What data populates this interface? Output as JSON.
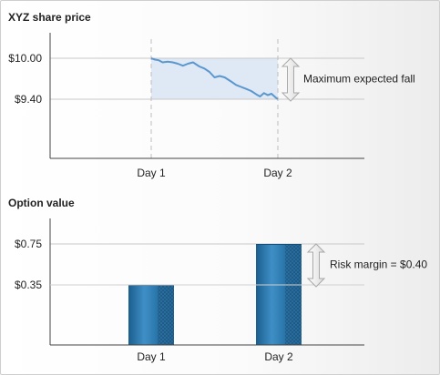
{
  "chart_data": [
    {
      "type": "line",
      "title": "XYZ share price",
      "x_ticks": [
        "Day 1",
        "Day 2"
      ],
      "y_ticks": [
        "$10.00",
        "$9.40"
      ],
      "y_tick_values": [
        10.0,
        9.4
      ],
      "ylim": [
        8.8,
        10.4
      ],
      "xlim": [
        0,
        1
      ],
      "series": [
        {
          "x": [
            0.0,
            0.03,
            0.06,
            0.09,
            0.13,
            0.17,
            0.21,
            0.25,
            0.29,
            0.33,
            0.38,
            0.42,
            0.46,
            0.5,
            0.54,
            0.58,
            0.63,
            0.67,
            0.71,
            0.75,
            0.79,
            0.83,
            0.86,
            0.89,
            0.92,
            0.95,
            0.98,
            1.0
          ],
          "values": [
            10.0,
            9.98,
            9.97,
            9.94,
            9.95,
            9.94,
            9.92,
            9.89,
            9.92,
            9.94,
            9.88,
            9.85,
            9.8,
            9.72,
            9.74,
            9.72,
            9.66,
            9.61,
            9.58,
            9.55,
            9.52,
            9.47,
            9.44,
            9.49,
            9.46,
            9.48,
            9.43,
            9.4
          ]
        }
      ],
      "band": {
        "from_value": 9.4,
        "to_value": 10.0,
        "color": "#dfe9f5"
      },
      "annotation": "Maximum expected fall",
      "grid": "horizontal",
      "line_color": "#5b97cf"
    },
    {
      "type": "bar",
      "title": "Option value",
      "categories": [
        "Day 1",
        "Day 2"
      ],
      "values": [
        0.35,
        0.75
      ],
      "y_ticks": [
        "$0.35",
        "$0.75"
      ],
      "y_tick_values": [
        0.35,
        0.75
      ],
      "ylim": [
        0,
        0.86
      ],
      "annotation": "Risk margin = $0.40",
      "grid": "horizontal",
      "bar_color": "#2b78ad"
    }
  ]
}
